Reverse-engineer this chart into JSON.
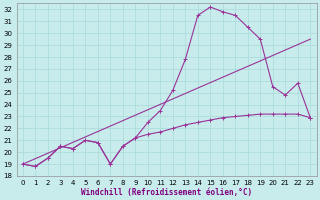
{
  "xlabel": "Windchill (Refroidissement éolien,°C)",
  "bg_color": "#c8ecec",
  "grid_color": "#a8d8d8",
  "line_color": "#993399",
  "xlim": [
    -0.5,
    23.5
  ],
  "ylim": [
    18,
    32.5
  ],
  "yticks": [
    18,
    19,
    20,
    21,
    22,
    23,
    24,
    25,
    26,
    27,
    28,
    29,
    30,
    31,
    32
  ],
  "xticks": [
    0,
    1,
    2,
    3,
    4,
    5,
    6,
    7,
    8,
    9,
    10,
    11,
    12,
    13,
    14,
    15,
    16,
    17,
    18,
    19,
    20,
    21,
    22,
    23
  ],
  "line1_x": [
    0,
    1,
    2,
    3,
    4,
    5,
    6,
    7,
    8,
    9,
    10,
    11,
    12,
    13,
    14,
    15,
    16,
    17,
    18,
    19,
    20,
    21,
    22,
    23
  ],
  "line1_y": [
    19.0,
    18.8,
    19.5,
    20.5,
    20.3,
    21.0,
    20.8,
    19.0,
    20.5,
    21.2,
    21.5,
    21.7,
    22.0,
    22.3,
    22.5,
    22.7,
    22.9,
    23.0,
    23.1,
    23.2,
    23.2,
    23.2,
    23.2,
    22.9
  ],
  "line2_x": [
    0,
    1,
    2,
    3,
    4,
    5,
    6,
    7,
    8,
    9,
    10,
    11,
    12,
    13,
    14,
    15,
    16,
    17,
    18,
    19,
    20,
    21,
    22,
    23
  ],
  "line2_y": [
    19.0,
    18.8,
    19.5,
    20.5,
    20.3,
    21.0,
    20.8,
    19.0,
    20.5,
    21.2,
    22.5,
    23.5,
    25.2,
    27.8,
    31.5,
    32.2,
    31.8,
    31.5,
    30.5,
    29.5,
    25.5,
    24.8,
    25.8,
    22.9
  ],
  "line3_x": [
    0,
    23
  ],
  "line3_y": [
    19.0,
    29.5
  ],
  "marker": "+",
  "markersize": 3,
  "linewidth": 0.8,
  "tick_fontsize": 5,
  "label_fontsize": 5.5
}
